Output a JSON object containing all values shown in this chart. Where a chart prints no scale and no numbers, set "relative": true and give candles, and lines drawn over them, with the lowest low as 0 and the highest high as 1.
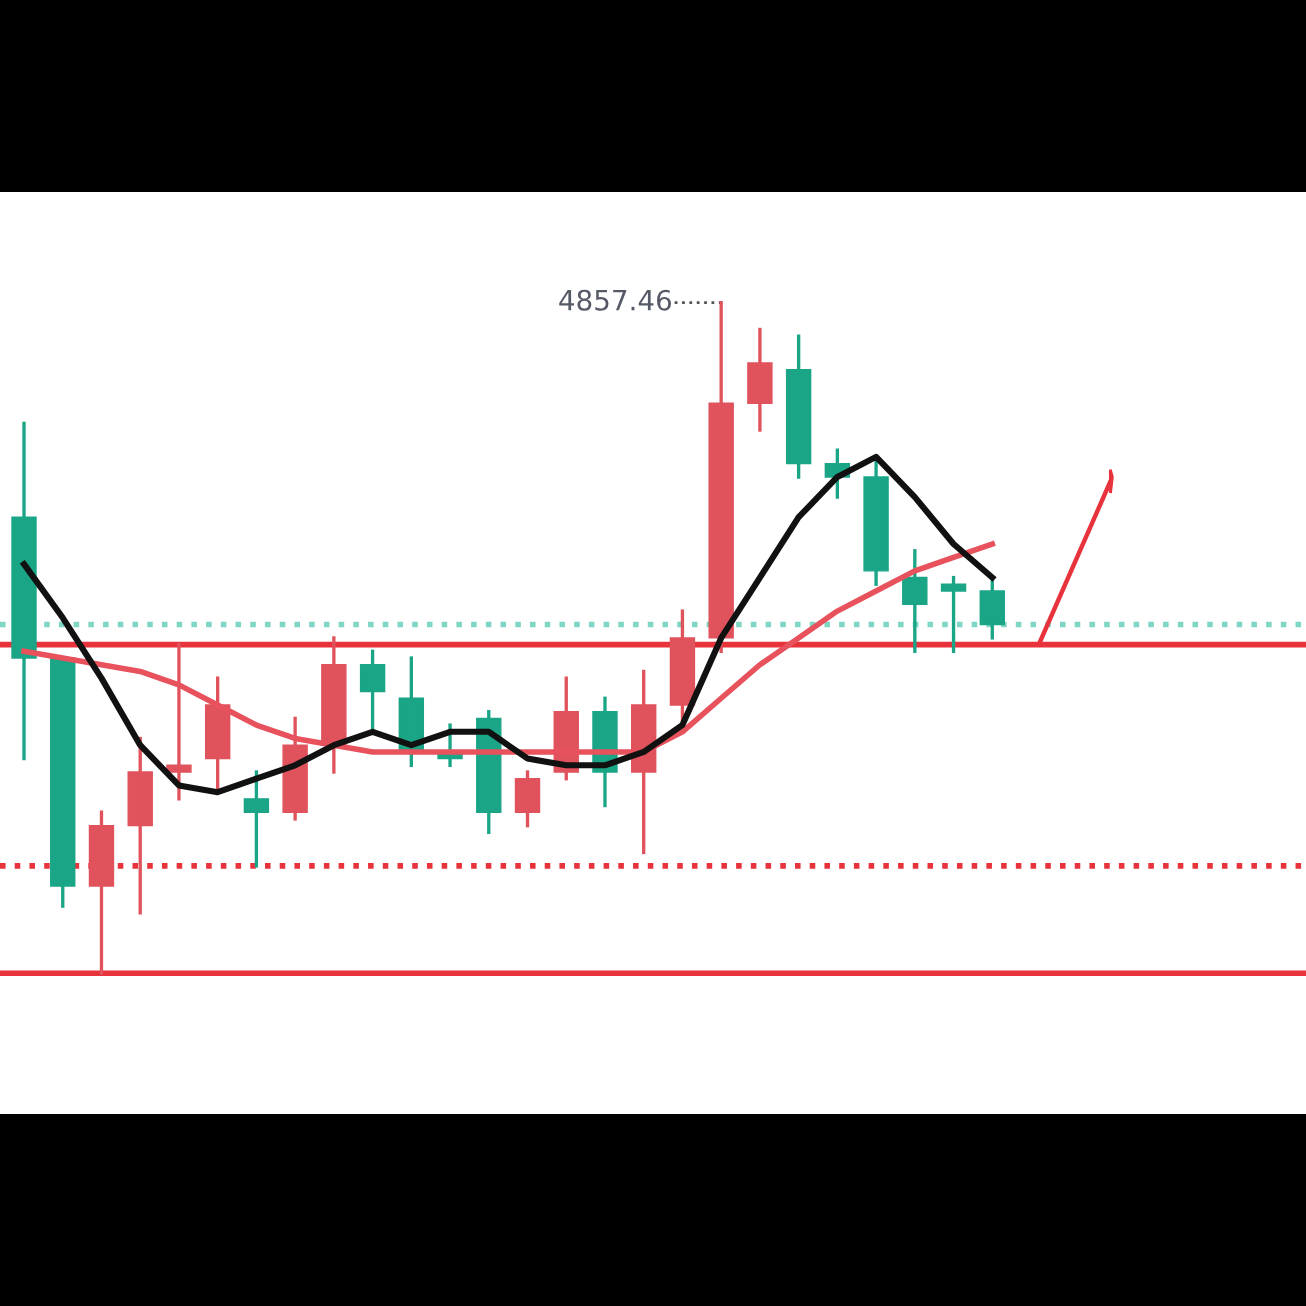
{
  "chart_data": {
    "type": "candlestick",
    "relative": true,
    "categories": [
      null,
      null,
      null,
      null,
      null,
      null,
      null,
      null,
      null,
      null,
      null,
      null,
      null,
      null,
      null,
      null,
      null,
      null,
      null,
      null,
      null,
      null,
      null,
      null,
      null,
      null
    ],
    "ohlc": [
      [
        0.68,
        0.82,
        0.32,
        0.47
      ],
      [
        0.47,
        0.47,
        0.1,
        0.13
      ],
      [
        0.13,
        0.24,
        0.0,
        0.22
      ],
      [
        0.22,
        0.35,
        0.09,
        0.3
      ],
      [
        0.3,
        0.49,
        0.26,
        0.31
      ],
      [
        0.32,
        0.44,
        0.27,
        0.4
      ],
      [
        0.26,
        0.3,
        0.16,
        0.24
      ],
      [
        0.24,
        0.38,
        0.23,
        0.34
      ],
      [
        0.34,
        0.5,
        0.3,
        0.46
      ],
      [
        0.46,
        0.48,
        0.36,
        0.42
      ],
      [
        0.41,
        0.47,
        0.31,
        0.33
      ],
      [
        0.33,
        0.37,
        0.31,
        0.32
      ],
      [
        0.38,
        0.39,
        0.21,
        0.24
      ],
      [
        0.24,
        0.3,
        0.22,
        0.29
      ],
      [
        0.3,
        0.44,
        0.29,
        0.39
      ],
      [
        0.39,
        0.41,
        0.25,
        0.3
      ],
      [
        0.3,
        0.45,
        0.18,
        0.4
      ],
      [
        0.4,
        0.54,
        0.37,
        0.5
      ],
      [
        0.5,
        1.0,
        0.48,
        0.85
      ],
      [
        0.85,
        0.96,
        0.81,
        0.91
      ],
      [
        0.9,
        0.95,
        0.74,
        0.76
      ],
      [
        0.76,
        0.78,
        0.71,
        0.74
      ],
      [
        0.74,
        0.77,
        0.58,
        0.6
      ],
      [
        0.59,
        0.63,
        0.48,
        0.55
      ],
      [
        0.58,
        0.59,
        0.48,
        0.57
      ],
      [
        0.57,
        0.59,
        0.5,
        0.52
      ]
    ],
    "colors": [
      "#1aa586",
      "#1aa586",
      "#e0525c",
      "#e0525c",
      "#e0525c",
      "#e0525c",
      "#1aa586",
      "#e0525c",
      "#e0525c",
      "#1aa586",
      "#1aa586",
      "#1aa586",
      "#1aa586",
      "#e0525c",
      "#e0525c",
      "#1aa586",
      "#e0525c",
      "#e0525c",
      "#e0525c",
      "#e0525c",
      "#1aa586",
      "#1aa586",
      "#1aa586",
      "#1aa586",
      "#1aa586",
      "#1aa586"
    ],
    "series": [
      {
        "type": "line",
        "color": "#e8525c",
        "values": [
          0.48,
          0.47,
          0.46,
          0.45,
          0.43,
          0.4,
          0.37,
          0.35,
          0.34,
          0.33,
          0.33,
          0.33,
          0.33,
          0.33,
          0.33,
          0.33,
          0.33,
          0.36,
          0.41,
          0.46,
          0.5,
          0.54,
          0.57,
          0.6,
          0.62,
          0.64
        ]
      },
      {
        "type": "line",
        "color": "#111111",
        "values": [
          0.61,
          0.53,
          0.44,
          0.34,
          0.28,
          0.27,
          0.29,
          0.31,
          0.34,
          0.36,
          0.34,
          0.36,
          0.36,
          0.32,
          0.31,
          0.31,
          0.33,
          0.37,
          0.5,
          0.59,
          0.68,
          0.74,
          0.77,
          0.71,
          0.64,
          0.59
        ]
      }
    ],
    "ref_lines": [
      {
        "axis": "y",
        "value": 0.49,
        "color": "#e8323c",
        "line_style": "solid"
      },
      {
        "axis": "y",
        "value": 0.0,
        "color": "#e8323c",
        "line_style": "solid"
      },
      {
        "axis": "y",
        "value": 0.16,
        "color": "#e8323c",
        "line_style": "dotted"
      },
      {
        "axis": "y",
        "value": 0.52,
        "color": "#7fd6c4",
        "line_style": "dotted"
      }
    ],
    "annotations": [
      "4857.46"
    ]
  }
}
